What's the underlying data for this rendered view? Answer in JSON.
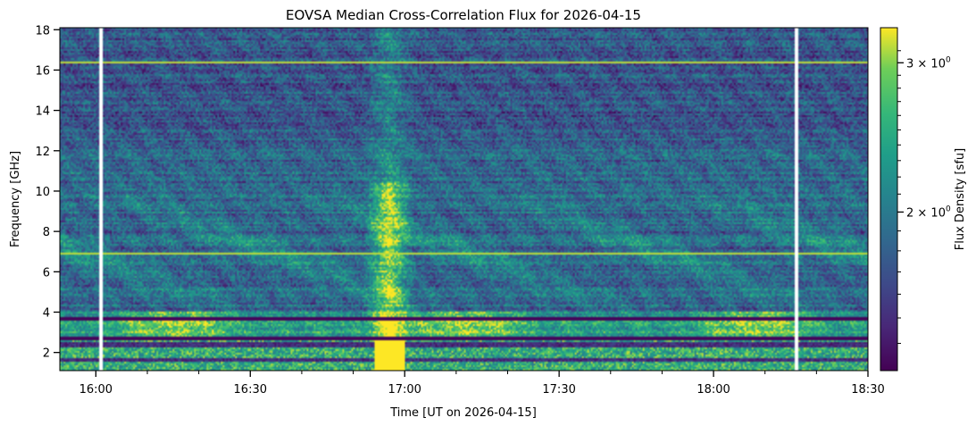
{
  "chart_data": {
    "type": "heatmap",
    "title": "EOVSA Median Cross-Correlation Flux for 2026-04-15",
    "xlabel": "Time [UT on 2026-04-15]",
    "ylabel": "Frequency [GHz]",
    "x_range": [
      "15:53",
      "18:30"
    ],
    "x_ticks": [
      "16:00",
      "16:30",
      "17:00",
      "17:30",
      "18:00",
      "18:30"
    ],
    "y_range": [
      1.1,
      18.1
    ],
    "y_ticks": [
      2,
      4,
      6,
      8,
      10,
      12,
      14,
      16,
      18
    ],
    "colorbar": {
      "label": "Flux Density [sfu]",
      "scale": "log",
      "colormap": "viridis",
      "range": [
        1.3,
        3.3
      ],
      "ticks": [
        "2 × 10^0",
        "3 × 10^0"
      ],
      "tick_values": [
        2,
        3
      ]
    },
    "features": {
      "burst_time": "16:57",
      "high_flux_band_ghz": [
        2.7,
        4.0
      ],
      "low_freq_saturation_band_ghz": [
        1.1,
        2.6
      ],
      "data_gaps_times": [
        "16:01",
        "18:16"
      ],
      "colors": {
        "low": "#440154",
        "mid": "#21918c",
        "high": "#fde725"
      }
    }
  }
}
